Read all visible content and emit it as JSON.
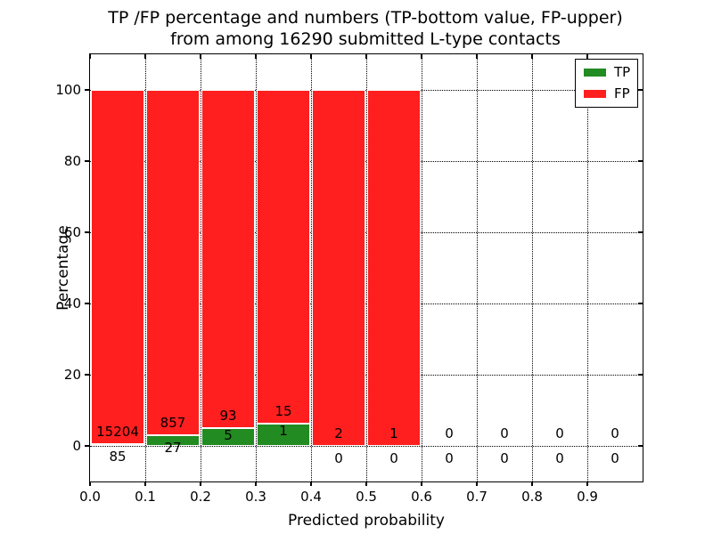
{
  "header": {
    "title_line1": "TP /FP percentage and numbers (TP-bottom value, FP-upper)",
    "title_line2": "from among 16290 submitted L-type contacts"
  },
  "axes": {
    "xlabel": "Predicted probability",
    "ylabel": "Percentage"
  },
  "legend": {
    "items": [
      {
        "label": "TP",
        "color": "#228b22"
      },
      {
        "label": "FP",
        "color": "#ff1f1f"
      }
    ]
  },
  "colors": {
    "tp": "#228b22",
    "fp": "#ff1f1f",
    "grid": "#000000",
    "background": "#ffffff"
  },
  "chart_data": {
    "type": "bar",
    "stacked": true,
    "title": "TP /FP percentage and numbers (TP-bottom value, FP-upper) from among 16290 submitted L-type contacts",
    "xlabel": "Predicted probability",
    "ylabel": "Percentage",
    "xlim": [
      0.0,
      1.0
    ],
    "ylim": [
      -10,
      110
    ],
    "grid": true,
    "legend_position": "upper right",
    "total_contacts": 16290,
    "bin_width": 0.1,
    "bin_starts": [
      0.0,
      0.1,
      0.2,
      0.3,
      0.4,
      0.5,
      0.6,
      0.7,
      0.8,
      0.9
    ],
    "xticks": [
      "0.0",
      "0.1",
      "0.2",
      "0.3",
      "0.4",
      "0.5",
      "0.6",
      "0.7",
      "0.8",
      "0.9"
    ],
    "ytick_values": [
      0,
      20,
      40,
      60,
      80,
      100
    ],
    "yticks": [
      "0",
      "20",
      "40",
      "60",
      "80",
      "100"
    ],
    "series": [
      {
        "name": "TP",
        "color": "#228b22",
        "counts": [
          85,
          27,
          5,
          1,
          0,
          0,
          0,
          0,
          0,
          0
        ],
        "percentages": [
          0.556,
          3.054,
          5.102,
          6.25,
          0,
          0,
          0,
          0,
          0,
          0
        ]
      },
      {
        "name": "FP",
        "color": "#ff1f1f",
        "counts": [
          15204,
          857,
          93,
          15,
          2,
          1,
          0,
          0,
          0,
          0
        ],
        "percentages": [
          99.444,
          96.946,
          94.898,
          93.75,
          100,
          100,
          0,
          0,
          0,
          0
        ]
      }
    ]
  }
}
